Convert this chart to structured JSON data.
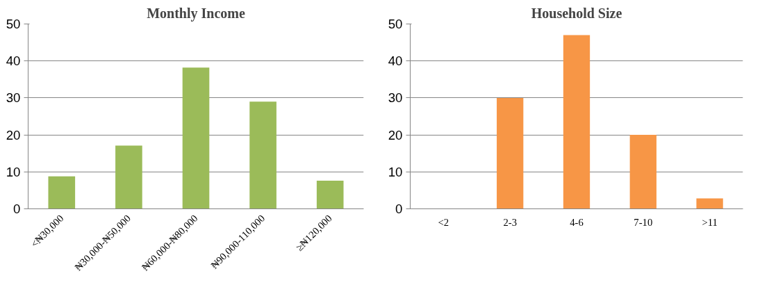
{
  "chart_data": [
    {
      "type": "bar",
      "title": "Monthly Income",
      "categories": [
        "<₦30,000",
        "₦30,000-₦50,000",
        "₦60,000-₦80,000",
        "₦90,000-110,000",
        "≥₦120,000"
      ],
      "values": [
        8.8,
        17.1,
        38.2,
        29,
        7.6
      ],
      "color": "#9bbb59",
      "ylim": [
        0,
        50
      ],
      "yticks": [
        0,
        10,
        20,
        30,
        40,
        50
      ],
      "grid": "y"
    },
    {
      "type": "bar",
      "title": "Household Size",
      "categories": [
        "<2",
        "2-3",
        "4-6",
        "7-10",
        ">11"
      ],
      "values": [
        0,
        30,
        47,
        20,
        2.8
      ],
      "color": "#f79646",
      "ylim": [
        0,
        50
      ],
      "yticks": [
        0,
        10,
        20,
        30,
        40,
        50
      ],
      "grid": "y"
    }
  ]
}
